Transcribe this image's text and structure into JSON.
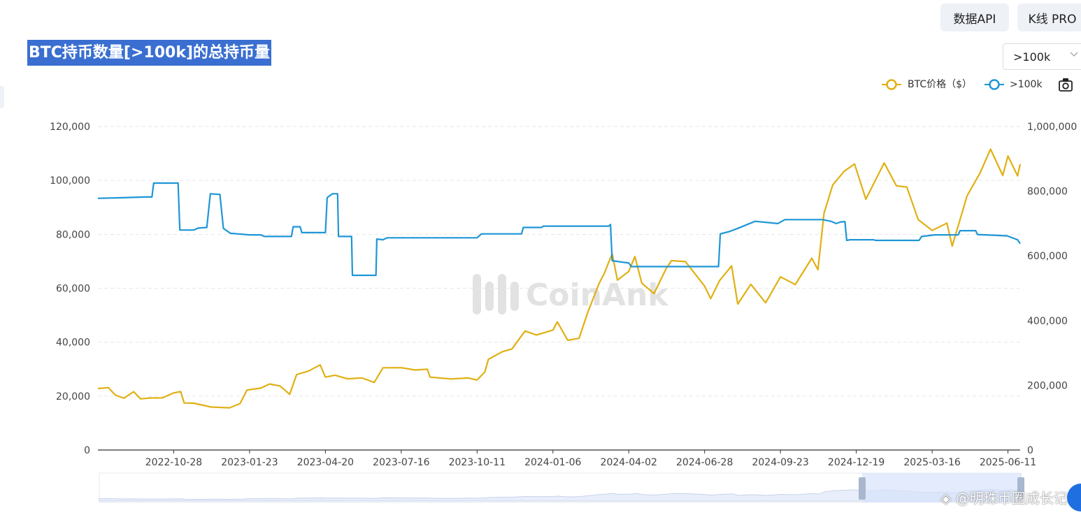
{
  "header": {
    "api_button": "数据API",
    "kline_button": "K线 PRO",
    "title": "BTC持币数量[>100k]的总持币量",
    "selected_threshold": ">100k"
  },
  "legend": {
    "items": [
      {
        "label": "BTC价格（$）",
        "color": "#e0b013"
      },
      {
        "label": ">100k",
        "color": "#1e96d6"
      }
    ]
  },
  "watermark": {
    "brand": "CoinAnk",
    "author": "@明珠币圈成长记"
  },
  "icons": {
    "camera": "camera-icon",
    "chevron": "chevron-down-icon",
    "logo": "coinank-logo-icon"
  },
  "chart_data": {
    "type": "line",
    "title": "BTC持币数量[>100k]的总持币量",
    "x_tick_labels": [
      "2022-10-28",
      "2023-01-23",
      "2023-04-20",
      "2023-07-16",
      "2023-10-11",
      "2024-01-06",
      "2024-04-02",
      "2024-06-28",
      "2024-09-23",
      "2024-12-19",
      "2025-03-16",
      "2025-06-11"
    ],
    "x_range": [
      "2022-08-02",
      "2025-06-25"
    ],
    "left_axis": {
      "ticks": [
        "0",
        "20,000",
        "40,000",
        "60,000",
        "80,000",
        "100,000",
        "120,000"
      ],
      "ylim": [
        0,
        120000
      ]
    },
    "right_axis": {
      "ticks": [
        "0",
        "200,000",
        "400,000",
        "600,000",
        "800,000",
        "1,000,000"
      ],
      "ylim": [
        0,
        1000000
      ]
    },
    "grid": "horizontal dashed",
    "legend_position": "top-right",
    "series": [
      {
        "name": "BTC价格（$）",
        "axis": "left",
        "color": "#e0b013",
        "points": [
          [
            "2022-08-02",
            22800
          ],
          [
            "2022-08-14",
            24300
          ],
          [
            "2022-08-22",
            21300
          ],
          [
            "2022-09-01",
            19900
          ],
          [
            "2022-09-12",
            22100
          ],
          [
            "2022-09-20",
            19200
          ],
          [
            "2022-10-01",
            19300
          ],
          [
            "2022-10-15",
            19100
          ],
          [
            "2022-10-28",
            20700
          ],
          [
            "2022-11-05",
            21000
          ],
          [
            "2022-11-09",
            16500
          ],
          [
            "2022-11-20",
            16200
          ],
          [
            "2022-12-10",
            17100
          ],
          [
            "2022-12-31",
            16600
          ],
          [
            "2023-01-12",
            17900
          ],
          [
            "2023-01-20",
            22700
          ],
          [
            "2023-02-05",
            23200
          ],
          [
            "2023-02-15",
            24500
          ],
          [
            "2023-02-27",
            23500
          ],
          [
            "2023-03-10",
            20200
          ],
          [
            "2023-03-18",
            27300
          ],
          [
            "2023-04-01",
            28400
          ],
          [
            "2023-04-14",
            30400
          ],
          [
            "2023-04-20",
            28200
          ],
          [
            "2023-05-01",
            28700
          ],
          [
            "2023-05-15",
            27100
          ],
          [
            "2023-06-01",
            27200
          ],
          [
            "2023-06-15",
            25300
          ],
          [
            "2023-06-25",
            30500
          ],
          [
            "2023-07-16",
            30300
          ],
          [
            "2023-08-01",
            29200
          ],
          [
            "2023-08-15",
            29300
          ],
          [
            "2023-08-18",
            26100
          ],
          [
            "2023-09-11",
            25200
          ],
          [
            "2023-10-01",
            27900
          ],
          [
            "2023-10-11",
            26900
          ],
          [
            "2023-10-20",
            29700
          ],
          [
            "2023-10-24",
            34100
          ],
          [
            "2023-11-09",
            36700
          ],
          [
            "2023-11-20",
            37500
          ],
          [
            "2023-12-05",
            43900
          ],
          [
            "2023-12-18",
            42200
          ],
          [
            "2024-01-06",
            43800
          ],
          [
            "2024-01-11",
            46600
          ],
          [
            "2024-01-23",
            39500
          ],
          [
            "2024-02-05",
            42600
          ],
          [
            "2024-02-15",
            52000
          ],
          [
            "2024-02-28",
            62500
          ],
          [
            "2024-03-05",
            66000
          ],
          [
            "2024-03-14",
            73100
          ],
          [
            "2024-03-20",
            63000
          ],
          [
            "2024-04-02",
            66000
          ],
          [
            "2024-04-09",
            71300
          ],
          [
            "2024-04-17",
            61200
          ],
          [
            "2024-05-01",
            57100
          ],
          [
            "2024-05-15",
            66200
          ],
          [
            "2024-05-21",
            71400
          ],
          [
            "2024-06-06",
            70800
          ],
          [
            "2024-06-28",
            61500
          ],
          [
            "2024-07-05",
            56600
          ],
          [
            "2024-07-15",
            63000
          ],
          [
            "2024-07-29",
            68300
          ],
          [
            "2024-08-05",
            53900
          ],
          [
            "2024-08-20",
            61000
          ],
          [
            "2024-09-06",
            53900
          ],
          [
            "2024-09-23",
            63300
          ],
          [
            "2024-10-10",
            60200
          ],
          [
            "2024-10-29",
            72300
          ],
          [
            "2024-11-05",
            67800
          ],
          [
            "2024-11-12",
            88600
          ],
          [
            "2024-11-22",
            98800
          ],
          [
            "2024-12-05",
            103600
          ],
          [
            "2024-12-17",
            106100
          ],
          [
            "2024-12-30",
            92800
          ],
          [
            "2025-01-20",
            106000
          ],
          [
            "2025-02-03",
            97300
          ],
          [
            "2025-02-15",
            96600
          ],
          [
            "2025-02-28",
            84300
          ],
          [
            "2025-03-16",
            82600
          ],
          [
            "2025-04-02",
            85100
          ],
          [
            "2025-04-08",
            76300
          ],
          [
            "2025-04-25",
            94700
          ],
          [
            "2025-05-10",
            103000
          ],
          [
            "2025-05-22",
            111600
          ],
          [
            "2025-06-05",
            101600
          ],
          [
            "2025-06-11",
            108600
          ],
          [
            "2025-06-22",
            101000
          ],
          [
            "2025-06-25",
            106000
          ]
        ]
      },
      {
        "name": ">100k",
        "axis": "right",
        "color": "#1e96d6",
        "points": [
          [
            "2022-08-02",
            778000
          ],
          [
            "2022-09-01",
            780000
          ],
          [
            "2022-09-25",
            782000
          ],
          [
            "2022-10-03",
            782000
          ],
          [
            "2022-10-05",
            825000
          ],
          [
            "2022-10-28",
            825000
          ],
          [
            "2022-11-02",
            825000
          ],
          [
            "2022-11-04",
            680000
          ],
          [
            "2022-11-20",
            680000
          ],
          [
            "2022-11-25",
            686000
          ],
          [
            "2022-12-05",
            688000
          ],
          [
            "2022-12-09",
            792000
          ],
          [
            "2022-12-20",
            790000
          ],
          [
            "2022-12-24",
            685000
          ],
          [
            "2023-01-01",
            670000
          ],
          [
            "2023-01-23",
            665000
          ],
          [
            "2023-02-05",
            665000
          ],
          [
            "2023-02-09",
            660000
          ],
          [
            "2023-03-12",
            660000
          ],
          [
            "2023-03-14",
            690000
          ],
          [
            "2023-03-22",
            690000
          ],
          [
            "2023-03-24",
            672000
          ],
          [
            "2023-04-20",
            672000
          ],
          [
            "2023-04-22",
            780000
          ],
          [
            "2023-04-28",
            792000
          ],
          [
            "2023-05-04",
            792000
          ],
          [
            "2023-05-05",
            660000
          ],
          [
            "2023-05-20",
            660000
          ],
          [
            "2023-05-21",
            540000
          ],
          [
            "2023-06-17",
            540000
          ],
          [
            "2023-06-18",
            652000
          ],
          [
            "2023-06-25",
            650000
          ],
          [
            "2023-06-30",
            656000
          ],
          [
            "2023-10-11",
            656000
          ],
          [
            "2023-10-16",
            668000
          ],
          [
            "2023-12-01",
            668000
          ],
          [
            "2023-12-03",
            688000
          ],
          [
            "2023-12-24",
            688000
          ],
          [
            "2023-12-26",
            692000
          ],
          [
            "2024-03-10",
            692000
          ],
          [
            "2024-03-12",
            697000
          ],
          [
            "2024-03-14",
            585000
          ],
          [
            "2024-04-02",
            578000
          ],
          [
            "2024-04-05",
            567000
          ],
          [
            "2024-07-14",
            567000
          ],
          [
            "2024-07-16",
            668000
          ],
          [
            "2024-07-26",
            675000
          ],
          [
            "2024-08-05",
            685000
          ],
          [
            "2024-08-25",
            707000
          ],
          [
            "2024-09-20",
            700000
          ],
          [
            "2024-09-28",
            712000
          ],
          [
            "2024-11-10",
            712000
          ],
          [
            "2024-11-20",
            707000
          ],
          [
            "2024-11-26",
            700000
          ],
          [
            "2024-12-01",
            705000
          ],
          [
            "2024-12-06",
            706000
          ],
          [
            "2024-12-08",
            648000
          ],
          [
            "2024-12-12",
            650000
          ],
          [
            "2025-01-08",
            650000
          ],
          [
            "2025-01-10",
            648000
          ],
          [
            "2025-03-01",
            648000
          ],
          [
            "2025-03-04",
            660000
          ],
          [
            "2025-03-19",
            665000
          ],
          [
            "2025-04-15",
            665000
          ],
          [
            "2025-04-17",
            678000
          ],
          [
            "2025-05-05",
            678000
          ],
          [
            "2025-05-07",
            666000
          ],
          [
            "2025-06-10",
            662000
          ],
          [
            "2025-06-22",
            650000
          ],
          [
            "2025-06-25",
            638000
          ]
        ]
      }
    ]
  }
}
